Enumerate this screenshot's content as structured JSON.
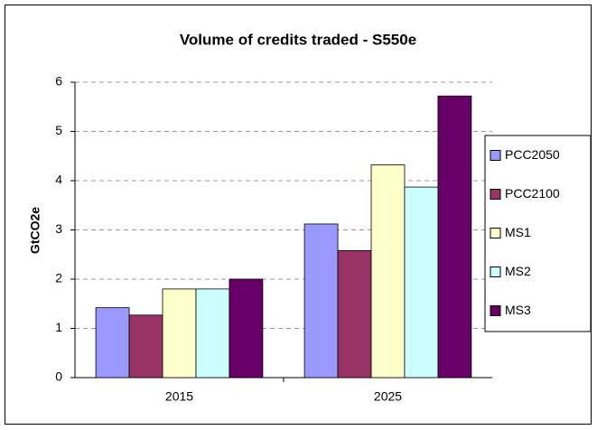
{
  "chart_data": {
    "type": "bar",
    "title": "Volume of credits traded - S550e",
    "y_label": "GtCO2e",
    "categories": [
      "2015",
      "2025"
    ],
    "series": [
      {
        "name": "PCC2050",
        "color": "#9999ff",
        "values": [
          1.42,
          3.12
        ]
      },
      {
        "name": "PCC2100",
        "color": "#993366",
        "values": [
          1.27,
          2.58
        ]
      },
      {
        "name": "MS1",
        "color": "#ffffcc",
        "values": [
          1.8,
          4.32
        ]
      },
      {
        "name": "MS2",
        "color": "#ccffff",
        "values": [
          1.8,
          3.87
        ]
      },
      {
        "name": "MS3",
        "color": "#660066",
        "values": [
          2.0,
          5.72
        ]
      }
    ],
    "ylim": [
      0,
      6
    ],
    "yticks": [
      0,
      1,
      2,
      3,
      4,
      5,
      6
    ],
    "grid": true,
    "legend": "right"
  }
}
